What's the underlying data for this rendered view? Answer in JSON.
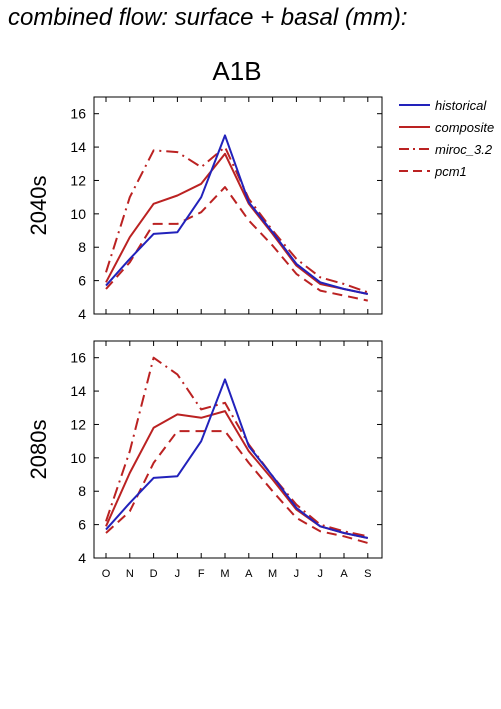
{
  "page": {
    "title": "combined flow: surface + basal (mm):"
  },
  "colors": {
    "historical": "#2222bb",
    "future": "#bb2222",
    "axis": "#000000"
  },
  "chart_data": {
    "type": "line",
    "title": "A1B",
    "x": [
      "O",
      "N",
      "D",
      "J",
      "F",
      "M",
      "A",
      "M",
      "J",
      "J",
      "A",
      "S"
    ],
    "ylim": [
      4,
      17
    ],
    "yticks": [
      4,
      6,
      8,
      10,
      12,
      14,
      16
    ],
    "legend": {
      "placement": "top-right outside",
      "entries": [
        {
          "name": "historical",
          "style": "solid",
          "color": "historical"
        },
        {
          "name": "composite",
          "style": "solid",
          "color": "future"
        },
        {
          "name": "miroc_3.2",
          "style": "dashdot",
          "color": "future"
        },
        {
          "name": "pcm1",
          "style": "dashed",
          "color": "future"
        }
      ]
    },
    "panels": [
      {
        "ylabel": "2040s",
        "series": [
          {
            "name": "historical",
            "values": [
              5.7,
              7.3,
              8.8,
              8.9,
              11.0,
              14.7,
              10.7,
              8.9,
              7.0,
              5.9,
              5.5,
              5.2
            ]
          },
          {
            "name": "composite",
            "values": [
              5.9,
              8.6,
              10.6,
              11.1,
              11.8,
              13.6,
              10.6,
              8.8,
              6.9,
              5.8,
              5.5,
              5.2
            ]
          },
          {
            "name": "miroc_3.2",
            "values": [
              6.5,
              11.0,
              13.8,
              13.7,
              12.8,
              14.0,
              10.9,
              9.0,
              7.3,
              6.2,
              5.8,
              5.3
            ]
          },
          {
            "name": "pcm1",
            "values": [
              5.5,
              7.1,
              9.4,
              9.4,
              10.1,
              11.6,
              9.6,
              8.1,
              6.4,
              5.4,
              5.1,
              4.8
            ]
          }
        ]
      },
      {
        "ylabel": "2080s",
        "series": [
          {
            "name": "historical",
            "values": [
              5.7,
              7.3,
              8.8,
              8.9,
              11.0,
              14.7,
              10.7,
              8.9,
              7.0,
              5.9,
              5.5,
              5.2
            ]
          },
          {
            "name": "composite",
            "values": [
              5.9,
              9.1,
              11.8,
              12.6,
              12.4,
              12.8,
              10.4,
              8.7,
              6.9,
              5.9,
              5.5,
              5.2
            ]
          },
          {
            "name": "miroc_3.2",
            "values": [
              6.2,
              10.4,
              16.0,
              15.0,
              12.9,
              13.3,
              10.8,
              8.9,
              7.2,
              6.0,
              5.6,
              5.3
            ]
          },
          {
            "name": "pcm1",
            "values": [
              5.5,
              6.8,
              9.7,
              11.6,
              11.6,
              11.6,
              9.7,
              8.0,
              6.4,
              5.6,
              5.3,
              4.9
            ]
          }
        ]
      }
    ]
  }
}
